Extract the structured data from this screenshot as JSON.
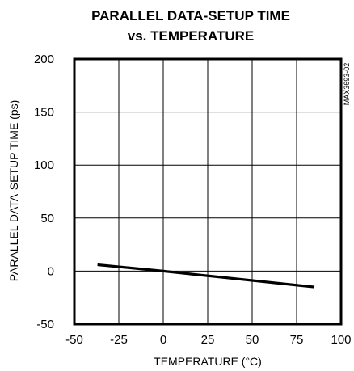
{
  "chart_data": {
    "type": "line",
    "title_line1": "PARALLEL DATA-SETUP TIME",
    "title_line2": "vs. TEMPERATURE",
    "xlabel": "TEMPERATURE (°C)",
    "ylabel": "PARALLEL DATA-SETUP TIME (ps)",
    "chart_code": "MAX3693-02",
    "xlim": [
      -50,
      100
    ],
    "ylim": [
      -50,
      200
    ],
    "x_ticks": [
      -50,
      -25,
      0,
      25,
      50,
      75,
      100
    ],
    "y_ticks": [
      -50,
      0,
      50,
      100,
      150,
      200
    ],
    "x_tick_labels": [
      "-50",
      "-25",
      "0",
      "25",
      "50",
      "75",
      "100"
    ],
    "y_tick_labels": [
      "-50",
      "0",
      "50",
      "100",
      "150",
      "200"
    ],
    "grid": true,
    "series": [
      {
        "x": [
          -37,
          0,
          85
        ],
        "y": [
          6,
          0,
          -15
        ]
      }
    ]
  }
}
